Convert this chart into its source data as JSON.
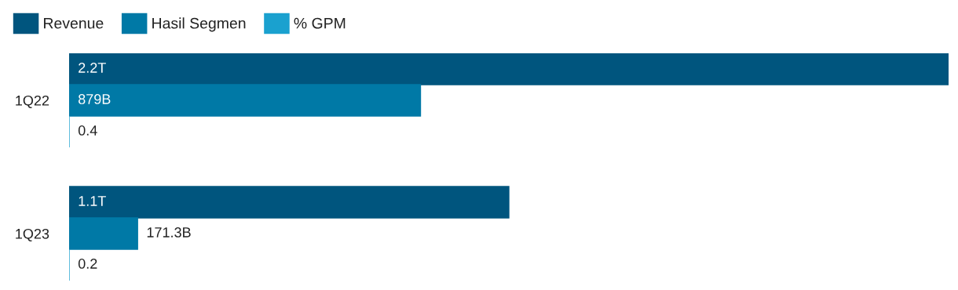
{
  "chart_data": {
    "type": "bar",
    "orientation": "horizontal",
    "categories": [
      "1Q22",
      "1Q23"
    ],
    "series": [
      {
        "name": "Revenue",
        "color": "#00557e",
        "values": [
          2200000000000,
          1100000000000
        ],
        "value_labels": [
          "2.2T",
          "1.1T"
        ]
      },
      {
        "name": "Hasil Segmen",
        "color": "#0079a6",
        "values": [
          879000000000,
          171300000000
        ],
        "value_labels": [
          "879B",
          "171.3B"
        ]
      },
      {
        "name": "% GPM",
        "color": "#1aa1cf",
        "values": [
          0.4,
          0.2
        ],
        "value_labels": [
          "0.4",
          "0.2"
        ]
      }
    ],
    "legend": "top left",
    "grid": false
  }
}
